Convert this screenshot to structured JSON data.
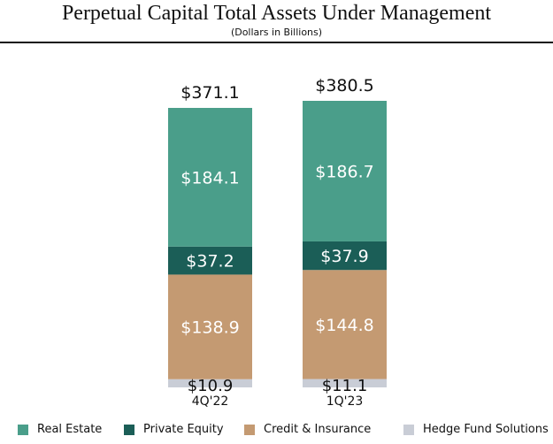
{
  "chart_data": {
    "type": "stacked-bar",
    "title": "Perpetual Capital Total Assets Under Management",
    "subtitle": "(Dollars in Billions)",
    "categories": [
      "4Q'22",
      "1Q'23"
    ],
    "totals": [
      "$371.1",
      "$380.5"
    ],
    "total_values": [
      371.1,
      380.5
    ],
    "series": [
      {
        "name": "Hedge Fund Solutions",
        "values": [
          10.9,
          11.1
        ],
        "labels": [
          "$10.9",
          "$11.1"
        ],
        "color": "#C9CDD6"
      },
      {
        "name": "Credit & Insurance",
        "values": [
          138.9,
          144.8
        ],
        "labels": [
          "$138.9",
          "$144.8"
        ],
        "color": "#C49A72"
      },
      {
        "name": "Private Equity",
        "values": [
          37.2,
          37.9
        ],
        "labels": [
          "$37.2",
          "$37.9"
        ],
        "color": "#1B5E57"
      },
      {
        "name": "Real Estate",
        "values": [
          184.1,
          186.7
        ],
        "labels": [
          "$184.1",
          "$186.7"
        ],
        "color": "#4A9E8A"
      }
    ],
    "legend": [
      "Real Estate",
      "Private Equity",
      "Credit & Insurance",
      "Hedge Fund Solutions"
    ],
    "legend_position": "bottom",
    "grid": false
  }
}
